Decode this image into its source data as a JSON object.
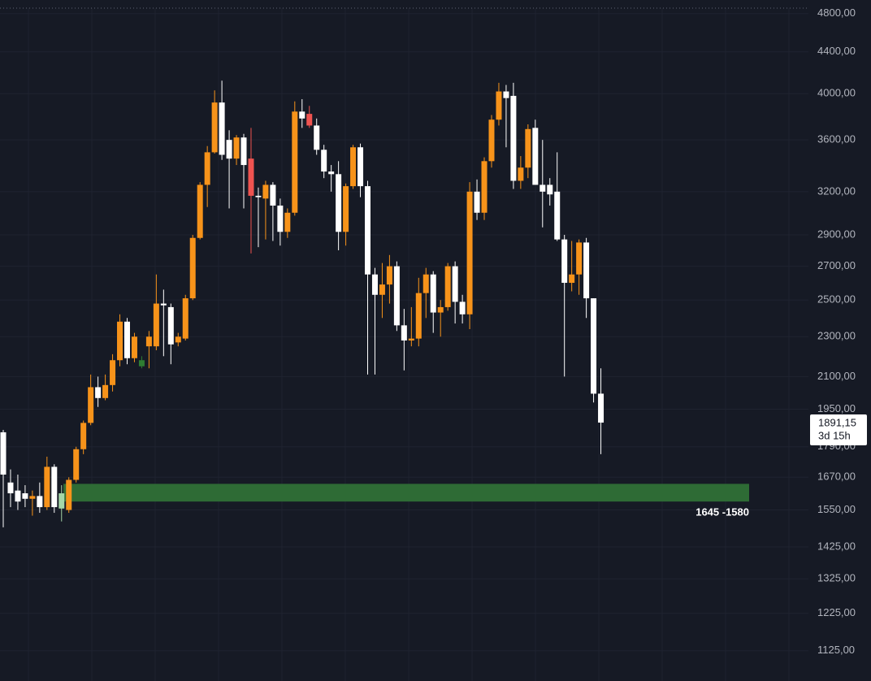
{
  "chart_data": {
    "type": "candlestick",
    "log_scale": true,
    "grid": true,
    "up_color": "#f7931a",
    "down_color": "#ffffff",
    "ylim": [
      1050,
      4860
    ],
    "yticks": [
      {
        "value": 4800,
        "label": "4800,00"
      },
      {
        "value": 4400,
        "label": "4400,00"
      },
      {
        "value": 4000,
        "label": "4000,00"
      },
      {
        "value": 3600,
        "label": "3600,00"
      },
      {
        "value": 3200,
        "label": "3200,00"
      },
      {
        "value": 2900,
        "label": "2900,00"
      },
      {
        "value": 2700,
        "label": "2700,00"
      },
      {
        "value": 2500,
        "label": "2500,00"
      },
      {
        "value": 2300,
        "label": "2300,00"
      },
      {
        "value": 2100,
        "label": "2100,00"
      },
      {
        "value": 1950,
        "label": "1950,00"
      },
      {
        "value": 1790,
        "label": "1790,00"
      },
      {
        "value": 1670,
        "label": "1670,00"
      },
      {
        "value": 1550,
        "label": "1550,00"
      },
      {
        "value": 1425,
        "label": "1425,00"
      },
      {
        "value": 1325,
        "label": "1325,00"
      },
      {
        "value": 1225,
        "label": "1225,00"
      },
      {
        "value": 1125,
        "label": "1125,00"
      }
    ],
    "open": [
      1850,
      1650,
      1620,
      1610,
      1590,
      1600,
      1560,
      1710,
      1610,
      1550,
      1660,
      1780,
      1890,
      2050,
      2000,
      2060,
      2180,
      2380,
      2190,
      2180,
      2250,
      2250,
      2480,
      2460,
      2270,
      2290,
      2510,
      2880,
      3250,
      3500,
      3920,
      3600,
      3450,
      3620,
      3450,
      3170,
      3150,
      3250,
      3100,
      2920,
      3050,
      3840,
      3820,
      3720,
      3520,
      3350,
      3330,
      2920,
      3240,
      3540,
      3240,
      2650,
      2530,
      2590,
      2700,
      2360,
      2280,
      2290,
      2540,
      2650,
      2430,
      2460,
      2700,
      2490,
      2420,
      3200,
      3050,
      3430,
      3770,
      4020,
      3980,
      3280,
      3380,
      3700,
      3250,
      3250,
      3200,
      2870,
      2600,
      2650,
      2850,
      2510,
      2020
    ],
    "high": [
      1860,
      1700,
      1680,
      1640,
      1620,
      1650,
      1750,
      1720,
      1640,
      1670,
      1790,
      1900,
      2110,
      2100,
      2110,
      2210,
      2420,
      2400,
      2320,
      2200,
      2330,
      2650,
      2560,
      2480,
      2320,
      2530,
      2900,
      3270,
      3550,
      4030,
      4120,
      3680,
      3640,
      3650,
      3700,
      3230,
      3280,
      3270,
      3150,
      3080,
      3930,
      3950,
      3890,
      3780,
      3560,
      3400,
      3430,
      3260,
      3560,
      3570,
      3280,
      2690,
      2720,
      2770,
      2730,
      2450,
      2460,
      2630,
      2690,
      2670,
      2500,
      2720,
      2730,
      2530,
      3270,
      3290,
      3460,
      3810,
      4100,
      4080,
      4100,
      3470,
      3730,
      3770,
      3600,
      3300,
      3500,
      2900,
      2860,
      2870,
      2880,
      2510,
      2140
    ],
    "low": [
      1490,
      1560,
      1550,
      1560,
      1530,
      1540,
      1550,
      1540,
      1510,
      1540,
      1650,
      1760,
      1880,
      1960,
      1990,
      2030,
      2150,
      2160,
      2170,
      2140,
      2140,
      2230,
      2200,
      2160,
      2250,
      2280,
      2500,
      2870,
      3090,
      3490,
      3440,
      3080,
      3400,
      3080,
      2780,
      2820,
      2870,
      2860,
      2830,
      2880,
      3030,
      3700,
      3700,
      3480,
      3300,
      3200,
      2800,
      2830,
      3220,
      3160,
      2110,
      2110,
      2400,
      2480,
      2330,
      2130,
      2250,
      2250,
      2400,
      2320,
      2300,
      2440,
      2370,
      2370,
      2340,
      3000,
      3000,
      3380,
      3720,
      3540,
      3220,
      3220,
      3300,
      3250,
      2950,
      3100,
      2860,
      2100,
      2550,
      2530,
      2400,
      1980,
      1760
    ],
    "close": [
      1680,
      1610,
      1580,
      1590,
      1600,
      1560,
      1710,
      1560,
      1555,
      1660,
      1780,
      1890,
      2050,
      2000,
      2060,
      2180,
      2380,
      2190,
      2300,
      2150,
      2300,
      2480,
      2470,
      2260,
      2300,
      2510,
      2880,
      3250,
      3500,
      3920,
      3480,
      3450,
      3620,
      3400,
      3170,
      3160,
      3250,
      3100,
      2920,
      3050,
      3840,
      3780,
      3720,
      3520,
      3350,
      3330,
      2920,
      3240,
      3540,
      3240,
      2650,
      2530,
      2590,
      2700,
      2360,
      2280,
      2290,
      2540,
      2650,
      2430,
      2460,
      2700,
      2490,
      2420,
      3200,
      3050,
      3430,
      3770,
      4020,
      3960,
      3280,
      3380,
      3690,
      3250,
      3200,
      3180,
      2870,
      2600,
      2650,
      2850,
      2510,
      2020,
      1891.15
    ],
    "highlights": [
      {
        "index": 8,
        "color": "#a5d6a7"
      },
      {
        "index": 19,
        "color": "#2e7d32"
      },
      {
        "index": 34,
        "color": "#ef5350"
      },
      {
        "index": 42,
        "color": "#ef5350"
      }
    ],
    "zone": {
      "top": 1645,
      "bottom": 1580,
      "label": "1645 -1580",
      "color": "#2e6b35"
    },
    "last_price": {
      "value": 1891.15,
      "label": "1891,15",
      "countdown": "3d 15h"
    }
  }
}
